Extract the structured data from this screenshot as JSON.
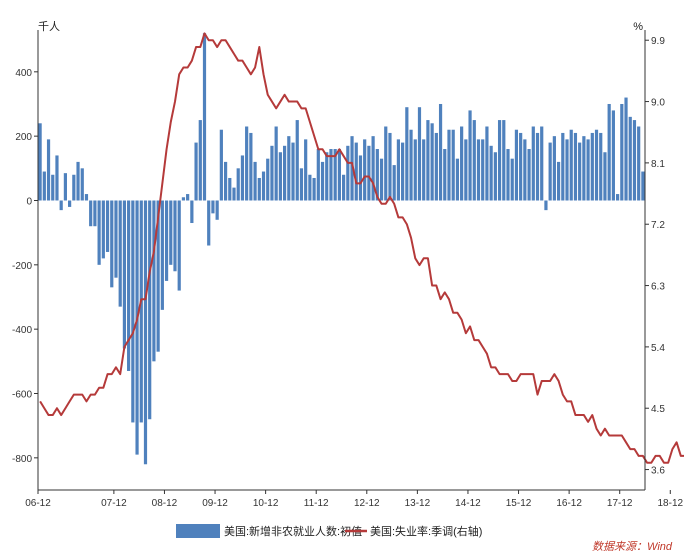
{
  "colors": {
    "bar": "#4f81bd",
    "line": "#b53a3a",
    "axis": "#333333",
    "source": "#c0392b"
  },
  "chart_data": {
    "type": "bar",
    "title": "",
    "left_unit": "千人",
    "right_unit": "%",
    "x_tick_labels": [
      "06-12",
      "07-12",
      "08-12",
      "09-12",
      "10-12",
      "11-12",
      "12-12",
      "13-12",
      "14-12",
      "15-12",
      "16-12",
      "17-12",
      "18-12"
    ],
    "left_ticks": [
      "400",
      "200",
      "0",
      "-200",
      "-400",
      "-600",
      "-800"
    ],
    "left_tick_values": [
      400,
      200,
      0,
      -200,
      -400,
      -600,
      -800
    ],
    "right_ticks": [
      "9.9",
      "9.0",
      "8.1",
      "7.2",
      "6.3",
      "5.4",
      "4.5",
      "3.6"
    ],
    "right_tick_values": [
      9.9,
      9.0,
      8.1,
      7.2,
      6.3,
      5.4,
      4.5,
      3.6
    ],
    "ylim_left": [
      -900,
      530
    ],
    "ylim_right": [
      3.3,
      10.05
    ],
    "start_month": "2006-06",
    "series": [
      {
        "name": "美国:新增非农就业人数:初值",
        "axis": "left",
        "type": "bar",
        "values": [
          240,
          90,
          190,
          80,
          140,
          -30,
          85,
          -20,
          80,
          120,
          100,
          20,
          -80,
          -80,
          -200,
          -180,
          -160,
          -270,
          -240,
          -330,
          -460,
          -530,
          -690,
          -790,
          -690,
          -820,
          -680,
          -500,
          -470,
          -340,
          -250,
          -200,
          -220,
          -280,
          10,
          20,
          -70,
          180,
          250,
          520,
          -140,
          -40,
          -60,
          220,
          120,
          70,
          40,
          100,
          140,
          230,
          210,
          120,
          70,
          90,
          130,
          170,
          230,
          150,
          170,
          200,
          180,
          250,
          100,
          190,
          80,
          70,
          160,
          120,
          150,
          160,
          160,
          160,
          80,
          170,
          200,
          180,
          140,
          190,
          170,
          200,
          160,
          130,
          230,
          210,
          110,
          190,
          180,
          290,
          220,
          190,
          290,
          190,
          250,
          240,
          210,
          300,
          160,
          220,
          220,
          130,
          230,
          190,
          280,
          250,
          190,
          190,
          230,
          170,
          150,
          250,
          250,
          160,
          130,
          220,
          210,
          190,
          160,
          230,
          210,
          230,
          -30,
          180,
          200,
          120,
          210,
          190,
          220,
          210,
          180,
          200,
          190,
          210,
          220,
          210,
          150,
          300,
          280,
          20,
          300,
          320,
          260,
          250,
          230,
          90
        ]
      },
      {
        "name": "美国:失业率:季调(右轴)",
        "axis": "right",
        "type": "line",
        "values": [
          4.6,
          4.5,
          4.4,
          4.4,
          4.5,
          4.4,
          4.5,
          4.6,
          4.7,
          4.7,
          4.7,
          4.6,
          4.7,
          4.7,
          4.8,
          4.8,
          5.0,
          5.0,
          5.1,
          5.0,
          5.4,
          5.5,
          5.6,
          5.8,
          6.1,
          6.1,
          6.5,
          6.8,
          7.3,
          7.8,
          8.3,
          8.7,
          9.0,
          9.4,
          9.5,
          9.5,
          9.6,
          9.8,
          9.8,
          10.0,
          9.9,
          9.9,
          9.8,
          9.9,
          9.9,
          9.8,
          9.7,
          9.6,
          9.6,
          9.5,
          9.4,
          9.5,
          9.8,
          9.4,
          9.1,
          9.0,
          8.9,
          9.0,
          9.1,
          9.0,
          9.0,
          9.0,
          8.9,
          8.9,
          8.7,
          8.5,
          8.3,
          8.3,
          8.2,
          8.2,
          8.2,
          8.3,
          8.2,
          8.1,
          8.1,
          7.8,
          7.8,
          7.9,
          7.9,
          7.8,
          7.6,
          7.5,
          7.5,
          7.6,
          7.5,
          7.3,
          7.3,
          7.2,
          7.0,
          6.7,
          6.6,
          6.7,
          6.7,
          6.3,
          6.3,
          6.1,
          6.2,
          6.1,
          5.9,
          5.9,
          5.8,
          5.6,
          5.7,
          5.5,
          5.5,
          5.4,
          5.3,
          5.1,
          5.1,
          5.0,
          5.0,
          5.0,
          4.9,
          4.9,
          5.0,
          5.0,
          5.0,
          5.0,
          4.7,
          4.9,
          4.9,
          4.9,
          5.0,
          4.9,
          4.7,
          4.6,
          4.6,
          4.4,
          4.4,
          4.4,
          4.3,
          4.4,
          4.2,
          4.1,
          4.2,
          4.1,
          4.1,
          4.1,
          4.1,
          4.0,
          3.9,
          3.9,
          3.8,
          3.8,
          3.7,
          3.7,
          3.8,
          3.8,
          3.7,
          3.7,
          3.9,
          4.0,
          3.8,
          3.8,
          3.6,
          3.6
        ]
      }
    ],
    "legend": [
      {
        "label": "美国:新增非农就业人数:初值",
        "marker": "bar"
      },
      {
        "label": "美国:失业率:季调(右轴)",
        "marker": "line"
      }
    ],
    "legend_position": "bottom-center",
    "grid": false
  },
  "footer": {
    "source": "数据来源：Wind"
  }
}
